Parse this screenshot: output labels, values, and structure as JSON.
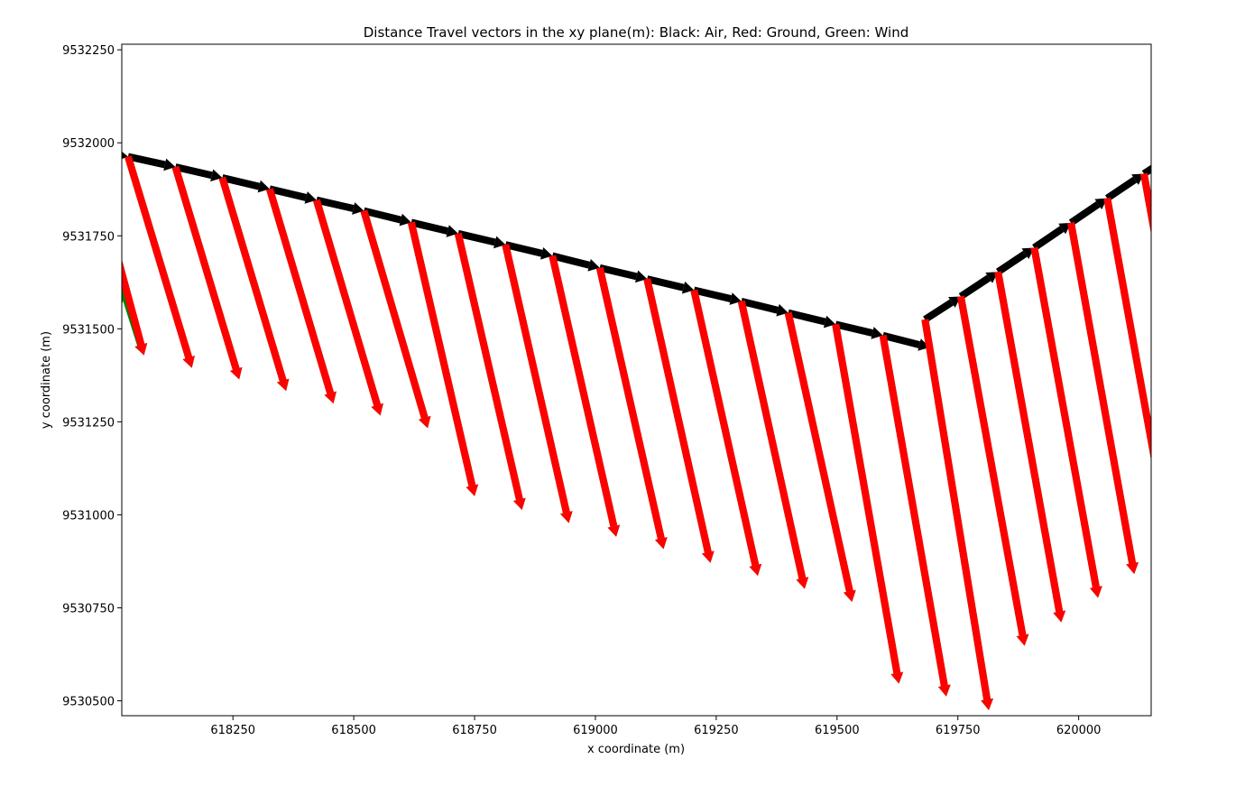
{
  "chart_data": {
    "type": "quiver",
    "title": "Distance Travel vectors in the xy plane(m): Black: Air, Red: Ground, Green: Wind",
    "xlabel": "x coordinate (m)",
    "ylabel": "y coordinate (m)",
    "xlim": [
      618020,
      620150
    ],
    "ylim": [
      9530460,
      9532265
    ],
    "xticks": [
      618250,
      618500,
      618750,
      619000,
      619250,
      619500,
      619750,
      620000
    ],
    "xtick_labels": [
      "618250",
      "618500",
      "618750",
      "619000",
      "619250",
      "619500",
      "619750",
      "620000"
    ],
    "yticks": [
      9530500,
      9530750,
      9531000,
      9531250,
      9531500,
      9531750,
      9532000,
      9532250
    ],
    "ytick_labels": [
      "9530500",
      "9530750",
      "9531000",
      "9531250",
      "9531500",
      "9531750",
      "9532000",
      "9532250"
    ],
    "colors": {
      "air": "#000000",
      "ground": "#ff0000",
      "wind": "#008000"
    },
    "series": [
      {
        "key": "air",
        "segments": [
          [
            617948,
            9531981,
            618033,
            9531963
          ],
          [
            618033,
            9531963,
            618131,
            9531935
          ],
          [
            618131,
            9531935,
            618228,
            9531906
          ],
          [
            618228,
            9531906,
            618326,
            9531876
          ],
          [
            618326,
            9531876,
            618423,
            9531846
          ],
          [
            618423,
            9531846,
            618521,
            9531817
          ],
          [
            618521,
            9531817,
            618619,
            9531786
          ],
          [
            618619,
            9531786,
            618716,
            9531756
          ],
          [
            618716,
            9531756,
            618814,
            9531726
          ],
          [
            618814,
            9531726,
            618911,
            9531696
          ],
          [
            618911,
            9531696,
            619009,
            9531664
          ],
          [
            619009,
            9531664,
            619107,
            9531634
          ],
          [
            619107,
            9531634,
            619204,
            9531604
          ],
          [
            619204,
            9531604,
            619302,
            9531574
          ],
          [
            619302,
            9531574,
            619399,
            9531543
          ],
          [
            619399,
            9531543,
            619497,
            9531512
          ],
          [
            619497,
            9531512,
            619595,
            9531482
          ],
          [
            619595,
            9531482,
            619692,
            9531450
          ],
          [
            619682,
            9531525,
            619756,
            9531587
          ],
          [
            619756,
            9531587,
            619833,
            9531653
          ],
          [
            619833,
            9531653,
            619908,
            9531718
          ],
          [
            619908,
            9531718,
            619984,
            9531785
          ],
          [
            619984,
            9531785,
            620059,
            9531851
          ],
          [
            620059,
            9531851,
            620135,
            9531917
          ],
          [
            620135,
            9531917,
            620180,
            9531955
          ]
        ]
      },
      {
        "key": "ground",
        "segments": [
          [
            617950,
            9531690,
            618019,
            9531559
          ],
          [
            617990,
            9531795,
            618066,
            9531429
          ],
          [
            618033,
            9531963,
            618165,
            9531395
          ],
          [
            618131,
            9531935,
            618263,
            9531364
          ],
          [
            618228,
            9531906,
            618360,
            9531333
          ],
          [
            618326,
            9531876,
            618458,
            9531299
          ],
          [
            618423,
            9531846,
            618555,
            9531267
          ],
          [
            618521,
            9531817,
            618653,
            9531233
          ],
          [
            618619,
            9531786,
            618750,
            9531050
          ],
          [
            618716,
            9531756,
            618848,
            9531013
          ],
          [
            618814,
            9531726,
            618945,
            9530978
          ],
          [
            618911,
            9531696,
            619043,
            9530941
          ],
          [
            619009,
            9531664,
            619141,
            9530908
          ],
          [
            619107,
            9531634,
            619238,
            9530871
          ],
          [
            619204,
            9531604,
            619336,
            9530836
          ],
          [
            619302,
            9531574,
            619433,
            9530801
          ],
          [
            619399,
            9531543,
            619531,
            9530766
          ],
          [
            619497,
            9531512,
            619628,
            9530546
          ],
          [
            619595,
            9531482,
            619726,
            9530512
          ],
          [
            619682,
            9531525,
            619814,
            9530475
          ],
          [
            619756,
            9531587,
            619888,
            9530648
          ],
          [
            619833,
            9531653,
            619964,
            9530711
          ],
          [
            619908,
            9531718,
            620040,
            9530777
          ],
          [
            619984,
            9531785,
            620115,
            9530841
          ],
          [
            620059,
            9531851,
            620191,
            9530907
          ],
          [
            620135,
            9531917,
            620266,
            9530972
          ]
        ]
      },
      {
        "key": "wind",
        "segments": [
          [
            617950,
            9531900,
            618019,
            9531559
          ],
          [
            617990,
            9531740,
            618066,
            9531429
          ],
          [
            618033,
            9531963,
            618165,
            9531395
          ],
          [
            618131,
            9531935,
            618263,
            9531364
          ],
          [
            618228,
            9531906,
            618360,
            9531333
          ],
          [
            618326,
            9531876,
            618458,
            9531299
          ],
          [
            618423,
            9531846,
            618555,
            9531267
          ],
          [
            618521,
            9531817,
            618653,
            9531233
          ],
          [
            618619,
            9531786,
            618750,
            9531050
          ],
          [
            618716,
            9531756,
            618848,
            9531013
          ],
          [
            618814,
            9531726,
            618945,
            9530978
          ],
          [
            618911,
            9531696,
            619043,
            9530941
          ],
          [
            619009,
            9531664,
            619141,
            9530908
          ],
          [
            619107,
            9531634,
            619238,
            9530871
          ],
          [
            619204,
            9531604,
            619336,
            9530836
          ],
          [
            619302,
            9531574,
            619433,
            9530801
          ],
          [
            619399,
            9531543,
            619531,
            9530766
          ],
          [
            619497,
            9531512,
            619628,
            9530546
          ],
          [
            619595,
            9531482,
            619726,
            9530512
          ],
          [
            619682,
            9531525,
            619814,
            9530475
          ],
          [
            619756,
            9531587,
            619888,
            9530648
          ],
          [
            619833,
            9531653,
            619964,
            9530711
          ],
          [
            619908,
            9531718,
            620040,
            9530777
          ],
          [
            619984,
            9531785,
            620115,
            9530841
          ],
          [
            620059,
            9531851,
            620191,
            9530907
          ],
          [
            620135,
            9531917,
            620266,
            9530972
          ]
        ]
      }
    ]
  }
}
